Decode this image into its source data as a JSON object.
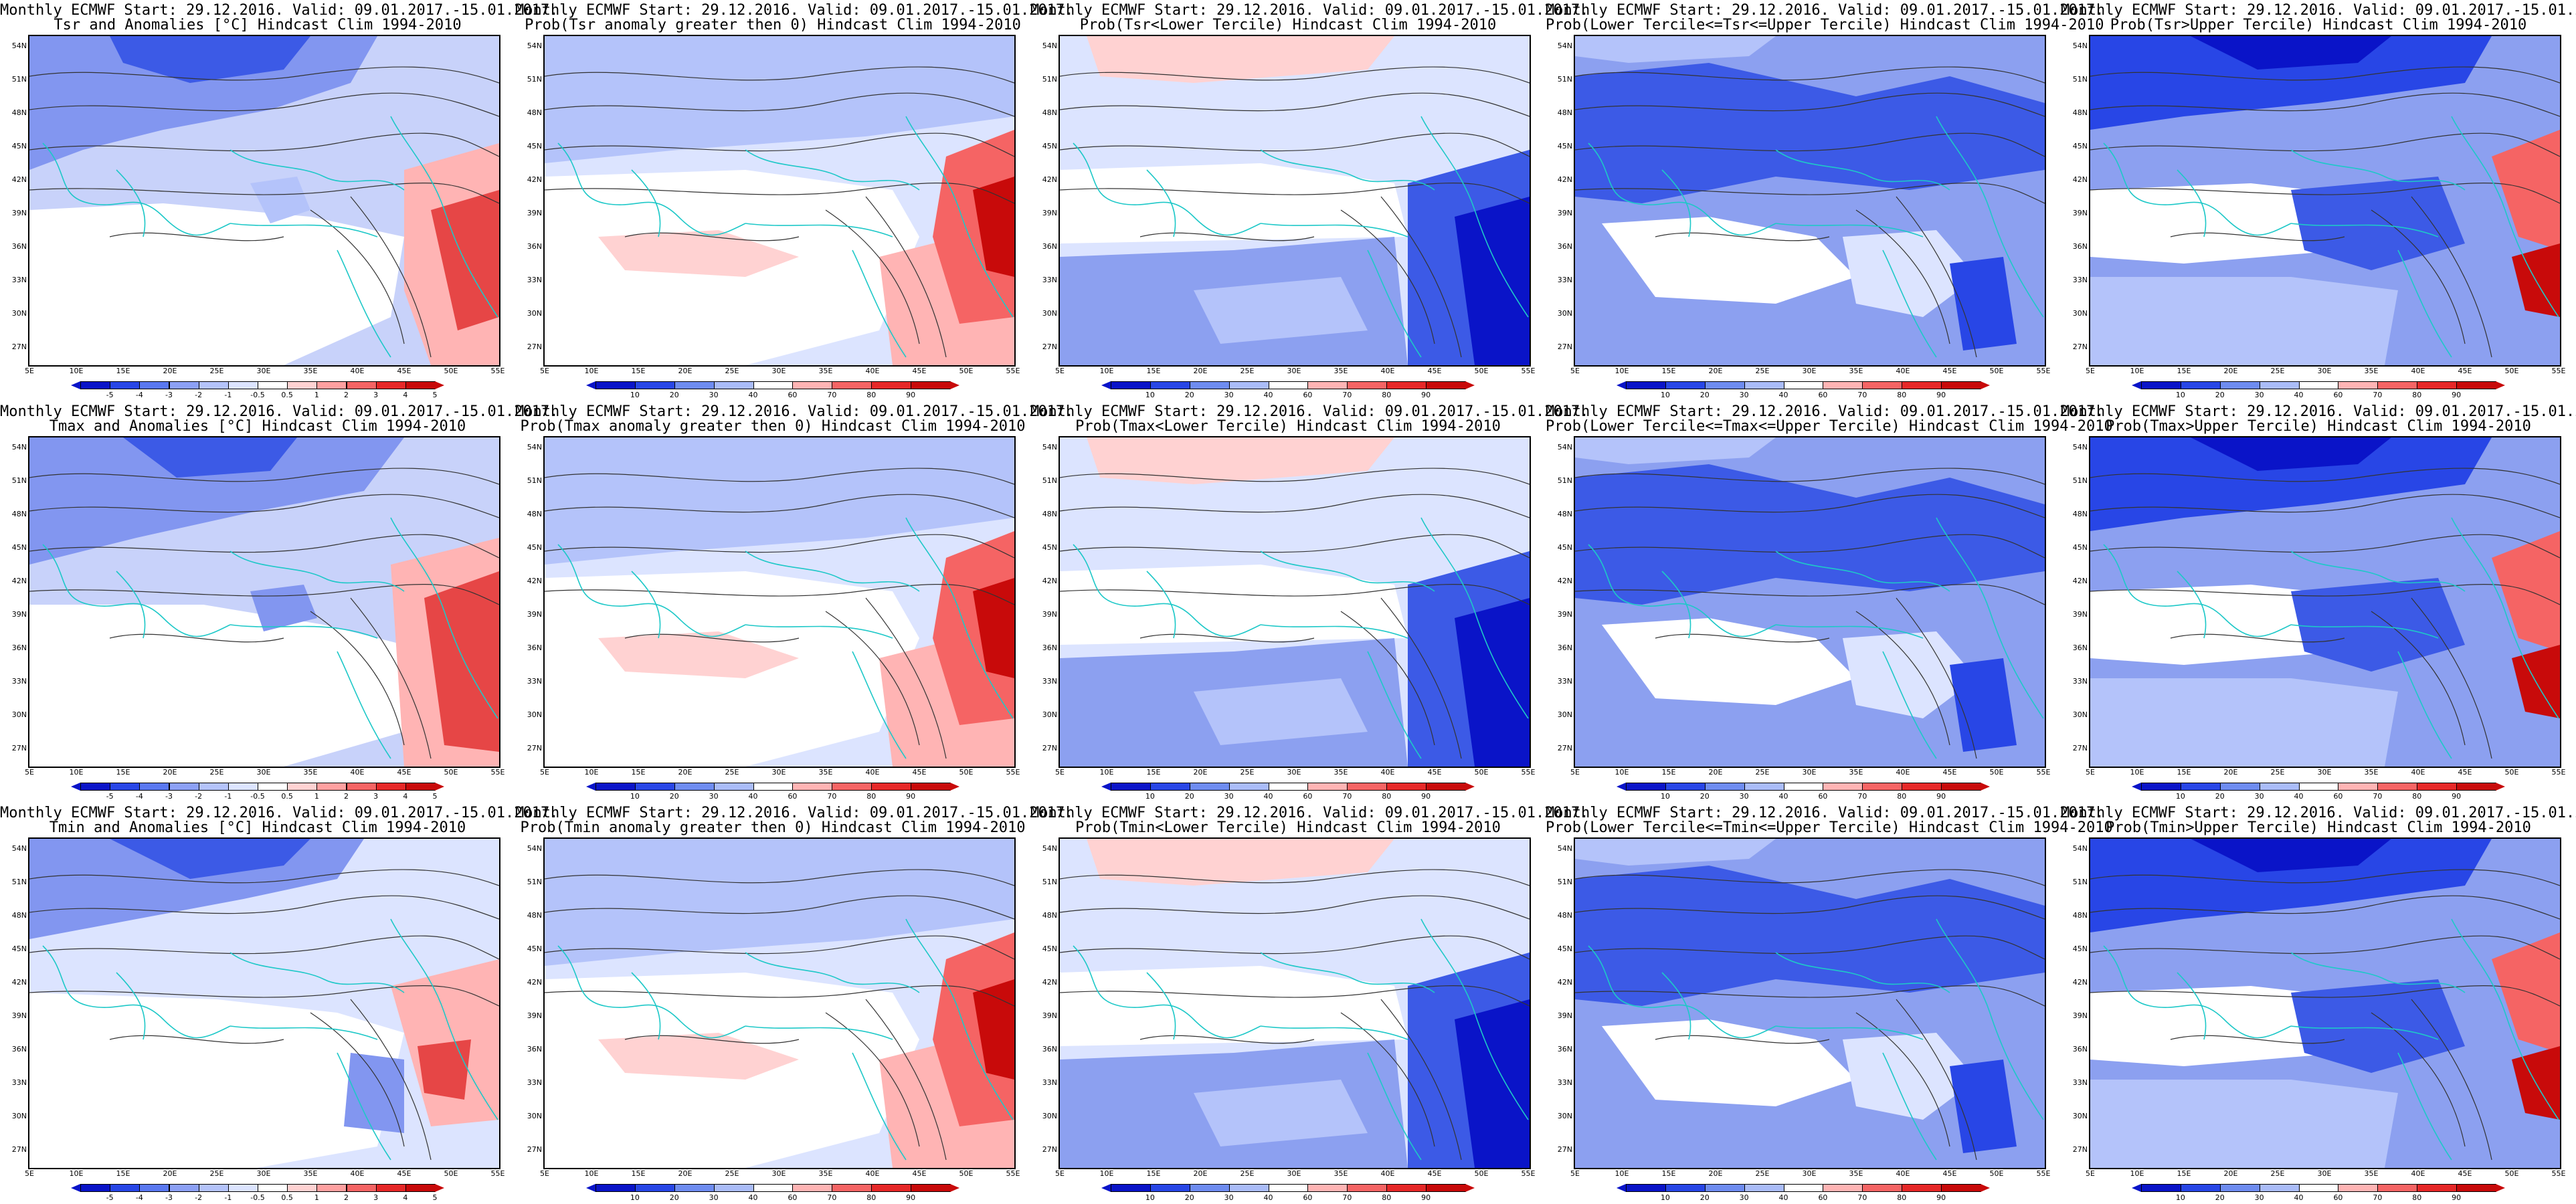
{
  "common": {
    "line1": "Monthly ECMWF Start: 29.12.2016. Valid: 09.01.2017.-15.01.2017.",
    "lat_labels": [
      "54N",
      "51N",
      "48N",
      "45N",
      "42N",
      "39N",
      "36N",
      "33N",
      "30N",
      "27N"
    ],
    "lon_labels": [
      "5E",
      "10E",
      "15E",
      "20E",
      "25E",
      "30E",
      "35E",
      "40E",
      "45E",
      "50E",
      "55E"
    ]
  },
  "colorbars": {
    "anomaly": {
      "labels": [
        "-5",
        "-4",
        "-3",
        "-2",
        "-1",
        "-0.5",
        "0.5",
        "1",
        "2",
        "3",
        "4",
        "5"
      ],
      "colors": [
        "#0a14c8",
        "#2846e6",
        "#5a78f0",
        "#8ca0f5",
        "#b4c3fa",
        "#dce4ff",
        "#ffffff",
        "#ffd2d2",
        "#ffa0a0",
        "#f56464",
        "#e62828",
        "#c80a0a"
      ]
    },
    "prob": {
      "labels": [
        "10",
        "20",
        "30",
        "40",
        "60",
        "70",
        "80",
        "90"
      ],
      "colors": [
        "#0a14c8",
        "#2846e6",
        "#6e8cf0",
        "#aabcf8",
        "#ffffff",
        "#ffb4b4",
        "#f56464",
        "#e62828",
        "#c80a0a"
      ]
    }
  },
  "rows": [
    {
      "panels": [
        {
          "title": "Tsr and Anomalies [°C] Hindcast Clim 1994-2010",
          "bar": "anomaly",
          "pattern": "anom_tsr"
        },
        {
          "title": "Prob(Tsr anomaly greater then 0) Hindcast Clim 1994-2010",
          "bar": "prob",
          "pattern": "prob_gt0"
        },
        {
          "title": "Prob(Tsr<Lower Tercile) Hindcast Clim 1994-2010",
          "bar": "prob",
          "pattern": "prob_lower"
        },
        {
          "title": "Prob(Lower Tercile<=Tsr<=Upper Tercile) Hindcast Clim 1994-2010",
          "bar": "prob",
          "pattern": "prob_mid"
        },
        {
          "title": "Prob(Tsr>Upper Tercile) Hindcast Clim 1994-2010",
          "bar": "prob",
          "pattern": "prob_upper"
        }
      ]
    },
    {
      "panels": [
        {
          "title": "Tmax and Anomalies [°C] Hindcast Clim 1994-2010",
          "bar": "anomaly",
          "pattern": "anom_tmax"
        },
        {
          "title": "Prob(Tmax anomaly greater then 0) Hindcast Clim 1994-2010",
          "bar": "prob",
          "pattern": "prob_gt0"
        },
        {
          "title": "Prob(Tmax<Lower Tercile) Hindcast Clim 1994-2010",
          "bar": "prob",
          "pattern": "prob_lower"
        },
        {
          "title": "Prob(Lower Tercile<=Tmax<=Upper Tercile) Hindcast Clim 1994-2010",
          "bar": "prob",
          "pattern": "prob_mid"
        },
        {
          "title": "Prob(Tmax>Upper Tercile) Hindcast Clim 1994-2010",
          "bar": "prob",
          "pattern": "prob_upper"
        }
      ]
    },
    {
      "panels": [
        {
          "title": "Tmin and Anomalies [°C] Hindcast Clim 1994-2010",
          "bar": "anomaly",
          "pattern": "anom_tmin"
        },
        {
          "title": "Prob(Tmin anomaly greater then 0) Hindcast Clim 1994-2010",
          "bar": "prob",
          "pattern": "prob_gt0"
        },
        {
          "title": "Prob(Tmin<Lower Tercile) Hindcast Clim 1994-2010",
          "bar": "prob",
          "pattern": "prob_lower"
        },
        {
          "title": "Prob(Lower Tercile<=Tmin<=Upper Tercile) Hindcast Clim 1994-2010",
          "bar": "prob",
          "pattern": "prob_mid"
        },
        {
          "title": "Prob(Tmin>Upper Tercile) Hindcast Clim 1994-2010",
          "bar": "prob",
          "pattern": "prob_upper"
        }
      ]
    }
  ]
}
